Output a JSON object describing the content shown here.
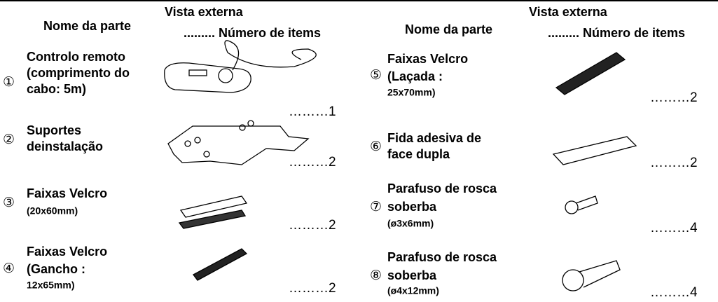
{
  "columns": [
    {
      "header": {
        "name": "Nome da parte",
        "view": "Vista externa",
        "count": "......... Número de items"
      },
      "items": [
        {
          "number": "①",
          "name": [
            "Controlo remoto",
            "(comprimento do",
            "cabo: 5m)"
          ],
          "quantity": "………1"
        },
        {
          "number": "②",
          "name": [
            "Suportes",
            "deinstalação"
          ],
          "quantity": "………2"
        },
        {
          "number": "③",
          "name": [
            "Faixas Velcro",
            "(20x60mm)"
          ],
          "quantity": "………2"
        },
        {
          "number": "④",
          "name": [
            "Faixas Velcro",
            "(Gancho :",
            "12x65mm)"
          ],
          "quantity": "………2"
        }
      ]
    },
    {
      "header": {
        "name": "Nome da parte",
        "view": "Vista externa",
        "count": "......... Número de items"
      },
      "items": [
        {
          "number": "⑤",
          "name": [
            "Faixas Velcro",
            "(Laçada :",
            "25x70mm)"
          ],
          "quantity": "………2"
        },
        {
          "number": "⑥",
          "name": [
            "Fida adesiva de",
            "face dupla"
          ],
          "quantity": "………2"
        },
        {
          "number": "⑦",
          "name": [
            "Parafuso de rosca",
            "soberba",
            "(ø3x6mm)"
          ],
          "quantity": "………4"
        },
        {
          "number": "⑧",
          "name": [
            "Parafuso de rosca",
            "soberba",
            "(ø4x12mm)"
          ],
          "quantity": "………4"
        }
      ]
    }
  ]
}
